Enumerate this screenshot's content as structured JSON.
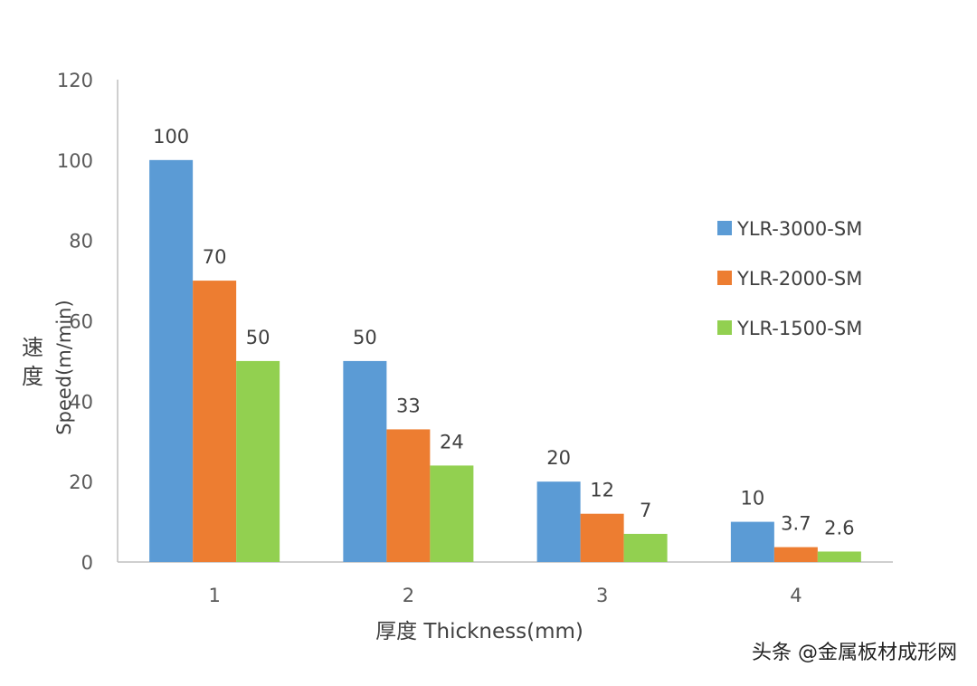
{
  "chart_data": {
    "type": "bar",
    "categories": [
      "1",
      "2",
      "3",
      "4"
    ],
    "series": [
      {
        "name": "YLR-3000-SM",
        "color": "#5B9BD5",
        "values": [
          100,
          50,
          20,
          10
        ],
        "labels": [
          "100",
          "50",
          "20",
          "10"
        ]
      },
      {
        "name": "YLR-2000-SM",
        "color": "#ED7D31",
        "values": [
          70,
          33,
          12,
          3.7
        ],
        "labels": [
          "70",
          "33",
          "12",
          "3.7"
        ]
      },
      {
        "name": "YLR-1500-SM",
        "color": "#92D050",
        "values": [
          50,
          24,
          7,
          2.6
        ],
        "labels": [
          "50",
          "24",
          "7",
          "2.6"
        ]
      }
    ],
    "xlabel": "厚度 Thickness(mm)",
    "ylabel_cn_1": "速",
    "ylabel_cn_2": "度",
    "ylabel": "Speed(m/min)",
    "ylim": [
      0,
      120
    ],
    "yticks": [
      "0",
      "20",
      "40",
      "60",
      "80",
      "100",
      "120"
    ],
    "grid": false,
    "legend_position": "right"
  },
  "watermark": "头条 @金属板材成形网"
}
